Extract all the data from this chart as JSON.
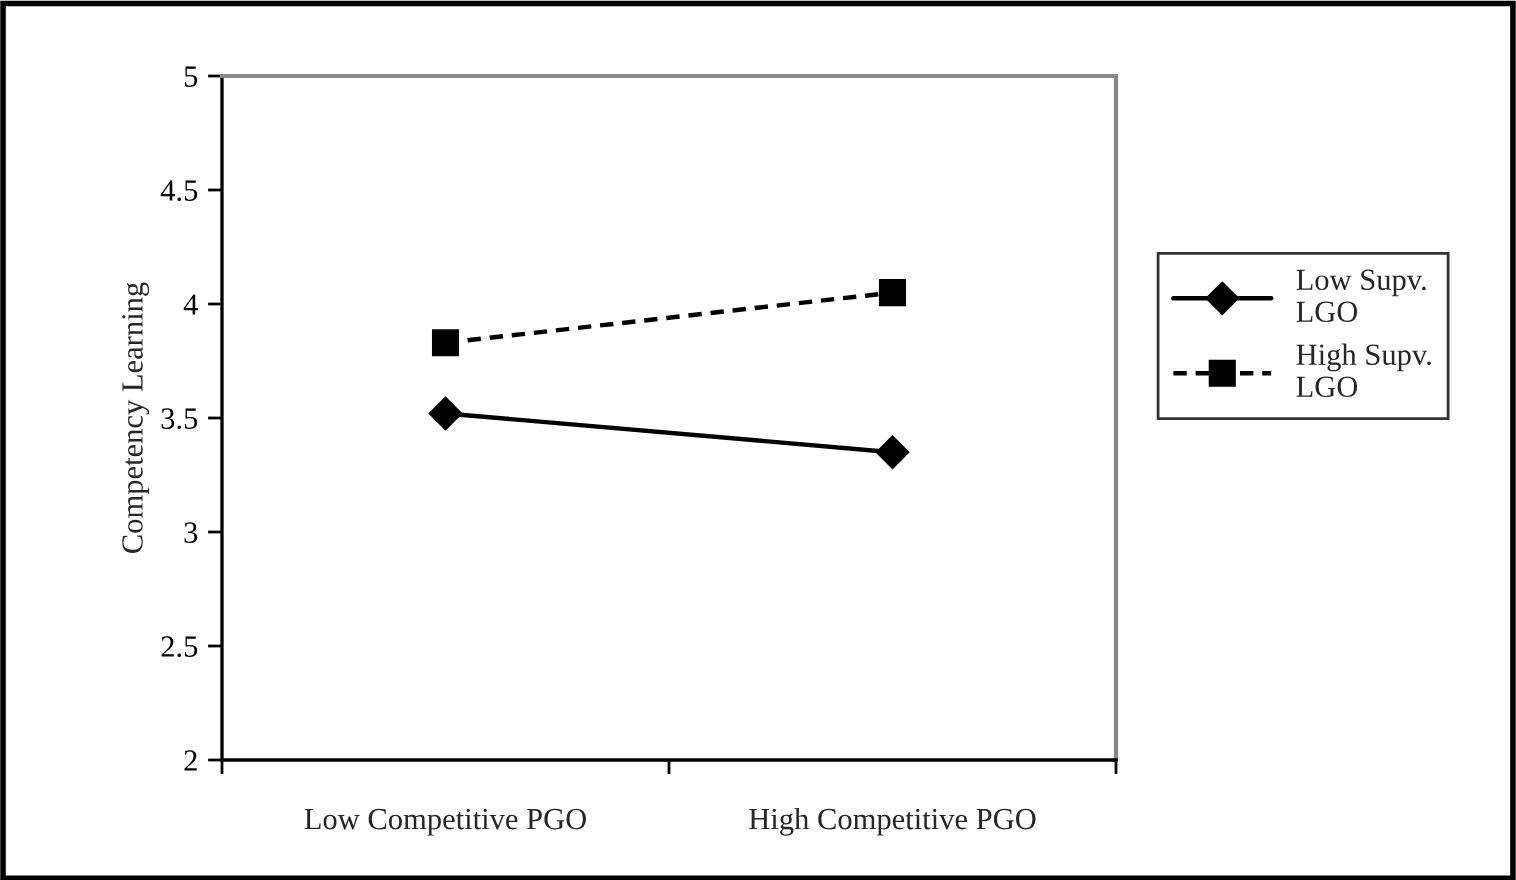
{
  "chart_data": {
    "type": "line",
    "ylabel": "Competency Learning",
    "categories": [
      "Low Competitive PGO",
      "High Competitive PGO"
    ],
    "series": [
      {
        "name": "Low Supv. LGO",
        "color": "#000000",
        "values": [
          3.52,
          3.35
        ],
        "marker": "diamond",
        "line_style": "solid"
      },
      {
        "name": "High Supv. LGO",
        "color": "#000000",
        "values": [
          3.83,
          4.05
        ],
        "marker": "square",
        "line_style": "dashed"
      }
    ],
    "ylim": [
      2,
      5
    ],
    "yticks": [
      2,
      2.5,
      3,
      3.5,
      4,
      4.5,
      5
    ],
    "grid": false,
    "legend": "right"
  }
}
